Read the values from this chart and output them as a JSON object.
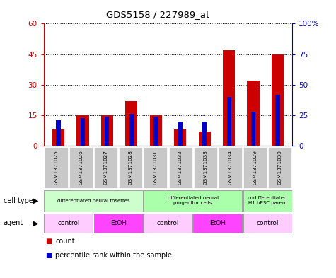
{
  "title": "GDS5158 / 227989_at",
  "samples": [
    "GSM1371025",
    "GSM1371026",
    "GSM1371027",
    "GSM1371028",
    "GSM1371031",
    "GSM1371032",
    "GSM1371033",
    "GSM1371034",
    "GSM1371029",
    "GSM1371030"
  ],
  "counts": [
    8,
    15,
    15,
    22,
    15,
    8,
    7,
    47,
    32,
    45
  ],
  "percentile_ranks": [
    21,
    23,
    24,
    26,
    24,
    20,
    20,
    40,
    28,
    42
  ],
  "ylim_left": [
    0,
    60
  ],
  "ylim_right": [
    0,
    100
  ],
  "yticks_left": [
    0,
    15,
    30,
    45,
    60
  ],
  "yticks_right": [
    0,
    25,
    50,
    75,
    100
  ],
  "ytick_labels_right": [
    "0",
    "25",
    "50",
    "75",
    "100%"
  ],
  "bar_color": "#cc0000",
  "percentile_color": "#0000cc",
  "cell_type_groups": [
    {
      "label": "differentiated neural rosettes",
      "start": 0,
      "end": 4,
      "color": "#ccffcc"
    },
    {
      "label": "differentiated neural\nprogenitor cells",
      "start": 4,
      "end": 8,
      "color": "#aaffaa"
    },
    {
      "label": "undifferentiated\nH1 hESC parent",
      "start": 8,
      "end": 10,
      "color": "#aaffaa"
    }
  ],
  "agent_groups": [
    {
      "label": "control",
      "start": 0,
      "end": 2,
      "color": "#ffccff"
    },
    {
      "label": "EtOH",
      "start": 2,
      "end": 4,
      "color": "#ff44ff"
    },
    {
      "label": "control",
      "start": 4,
      "end": 6,
      "color": "#ffccff"
    },
    {
      "label": "EtOH",
      "start": 6,
      "end": 8,
      "color": "#ff44ff"
    },
    {
      "label": "control",
      "start": 8,
      "end": 10,
      "color": "#ffccff"
    }
  ],
  "legend_count_color": "#cc0000",
  "legend_percentile_color": "#0000cc",
  "sample_bg_color": "#c8c8c8",
  "left_axis_color": "#cc0000",
  "right_axis_color": "#0000bb",
  "bar_width": 0.5,
  "pct_bar_width": 0.18
}
